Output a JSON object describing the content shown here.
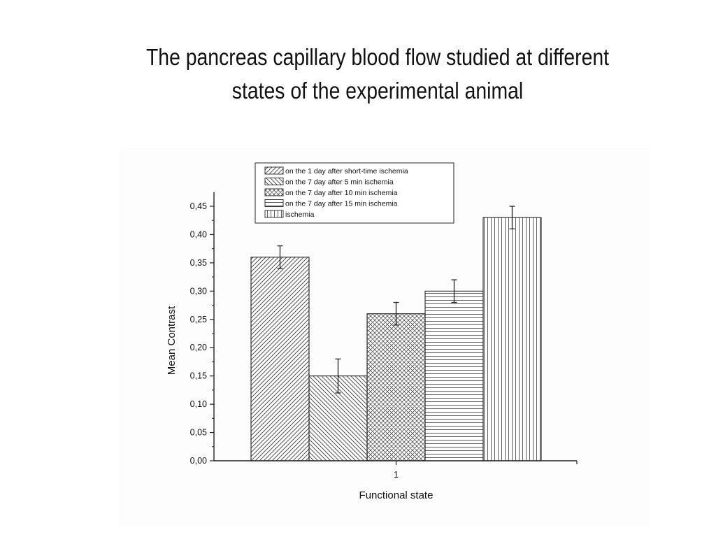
{
  "slide": {
    "title_line1": "The pancreas capillary blood flow studied at different",
    "title_line2": "states of the experimental animal"
  },
  "chart_data": {
    "type": "bar",
    "title": "",
    "xlabel": "Functional state",
    "ylabel": "Mean Contrast",
    "categories": [
      "1"
    ],
    "ylim": [
      0,
      0.45
    ],
    "yticks": [
      "0,00",
      "0,05",
      "0,10",
      "0,15",
      "0,20",
      "0,25",
      "0,30",
      "0,35",
      "0,40",
      "0,45"
    ],
    "grid": false,
    "legend_position": "top",
    "series": [
      {
        "name": "on the 1 day after short-time ischemia",
        "value": 0.36,
        "error": 0.02,
        "pattern": "diagonal-right"
      },
      {
        "name": "on the 7 day after 5 min ischemia",
        "value": 0.15,
        "error": 0.03,
        "pattern": "diagonal-left"
      },
      {
        "name": "on the 7 day after 10 min ischemia",
        "value": 0.26,
        "error": 0.02,
        "pattern": "crosshatch"
      },
      {
        "name": "on the 7 day after 15 min ischemia",
        "value": 0.3,
        "error": 0.02,
        "pattern": "horizontal"
      },
      {
        "name": "ischemia",
        "value": 0.43,
        "error": 0.02,
        "pattern": "vertical"
      }
    ],
    "colors": {
      "stroke": "#222222",
      "hatch": "#333333"
    }
  }
}
